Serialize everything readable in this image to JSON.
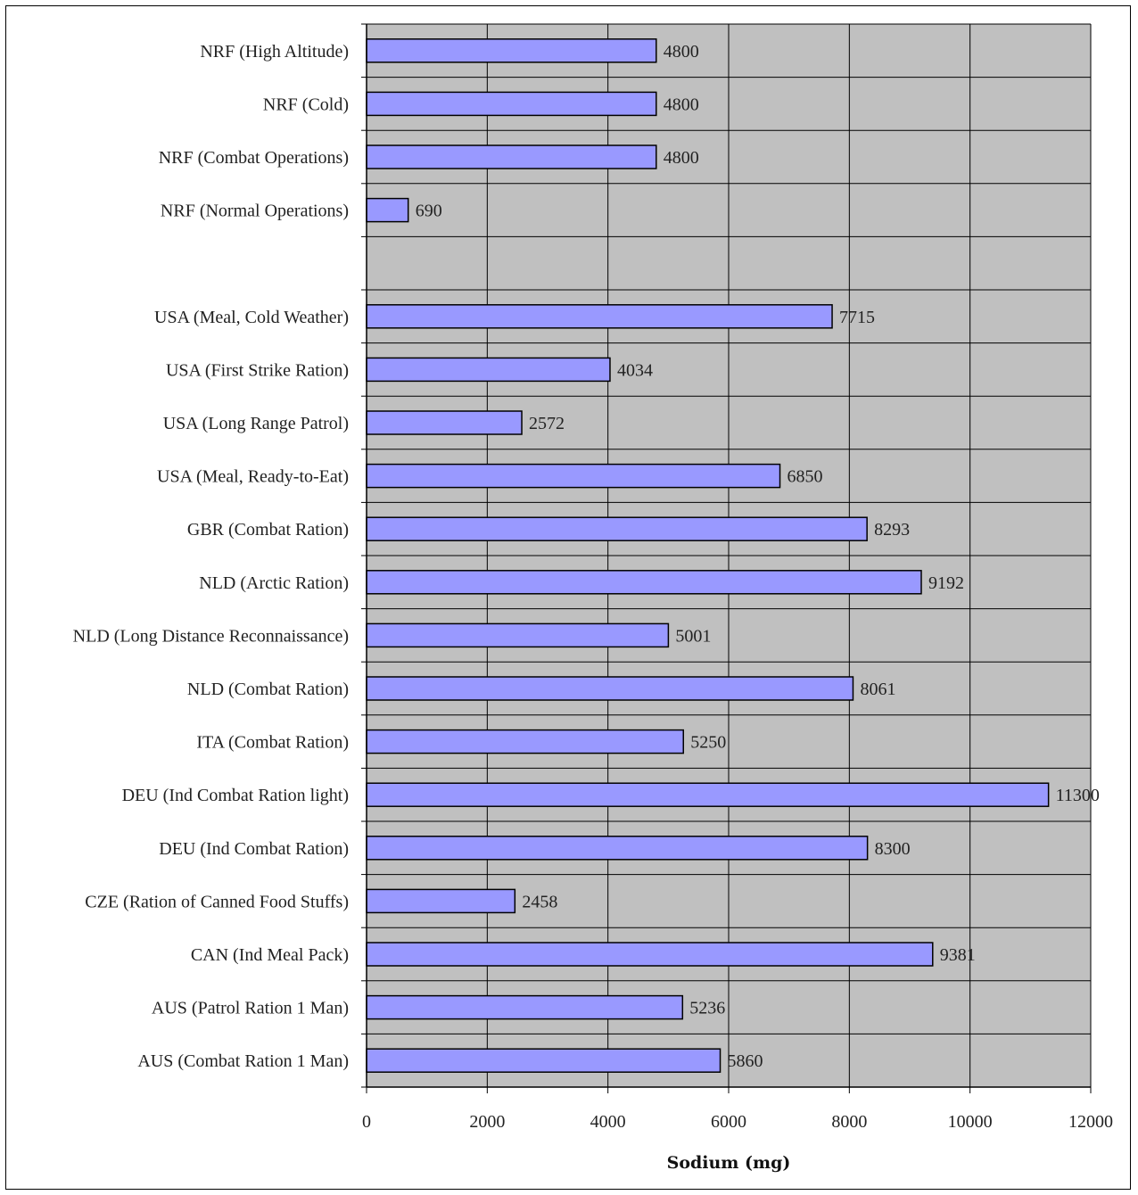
{
  "chart_data": {
    "type": "bar",
    "orientation": "horizontal",
    "title": "",
    "xlabel": "Sodium (mg)",
    "ylabel": "",
    "xlim": [
      0,
      12000
    ],
    "xticks": [
      0,
      2000,
      4000,
      6000,
      8000,
      10000,
      12000
    ],
    "grid": true,
    "legend": "none",
    "colors": {
      "bar_fill": "#9999ff",
      "bar_stroke": "#000000",
      "plot_background": "#c0c0c0",
      "grid": "#000000"
    },
    "categories": [
      "NRF (High Altitude)",
      "NRF (Cold)",
      "NRF (Combat Operations)",
      "NRF (Normal Operations)",
      "",
      "USA (Meal, Cold Weather)",
      "USA (First Strike Ration)",
      "USA (Long Range Patrol)",
      "USA (Meal, Ready-to-Eat)",
      "GBR (Combat Ration)",
      "NLD (Arctic Ration)",
      "NLD (Long Distance Reconnaissance)",
      "NLD (Combat Ration)",
      "ITA (Combat Ration)",
      "DEU (Ind Combat Ration light)",
      "DEU (Ind Combat Ration)",
      "CZE (Ration of Canned Food Stuffs)",
      "CAN (Ind Meal Pack)",
      "AUS (Patrol Ration 1 Man)",
      "AUS (Combat Ration 1 Man)"
    ],
    "values": [
      4800,
      4800,
      4800,
      690,
      null,
      7715,
      4034,
      2572,
      6850,
      8293,
      9192,
      5001,
      8061,
      5250,
      11300,
      8300,
      2458,
      9381,
      5236,
      5860
    ]
  }
}
